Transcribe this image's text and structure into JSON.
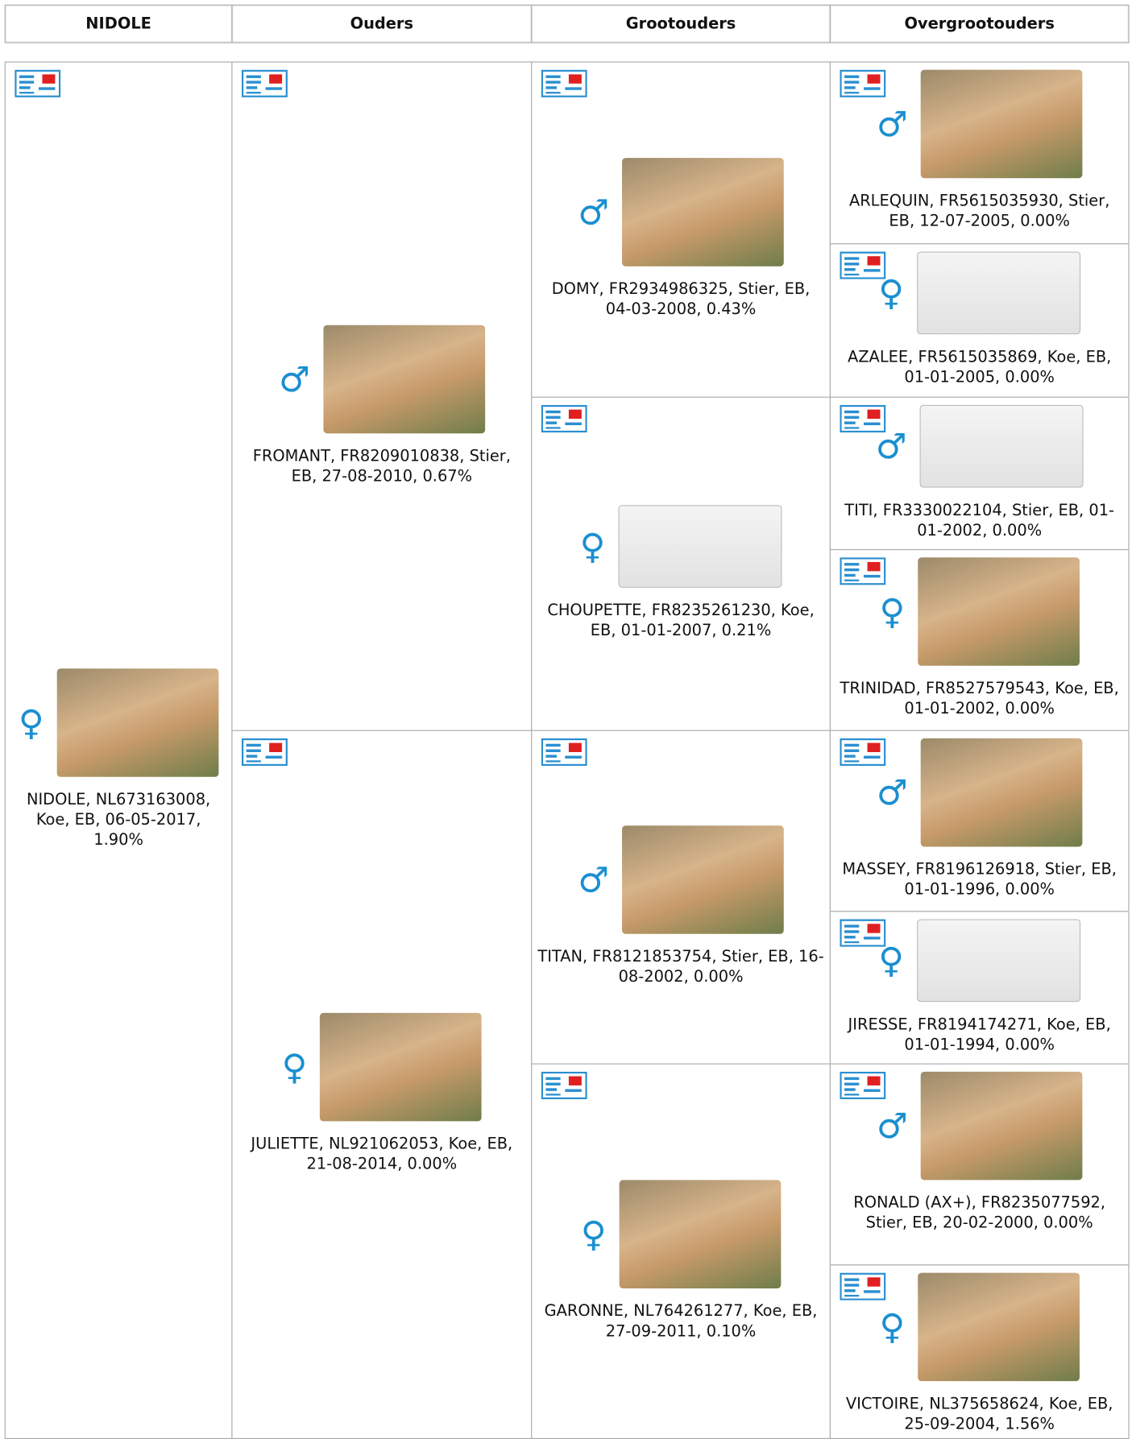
{
  "header": [
    "NIDOLE",
    "Ouders",
    "Grootouders",
    "Overgrootouders"
  ],
  "animals": [
    [
      {
        "sex": "♀",
        "label": "NIDOLE, NL673163008, Koe, EB, 06-05-2017, 1.90%"
      }
    ],
    [
      {
        "sex": "♂",
        "label": "FROMANT, FR8209010838, Stier, EB, 27-08-2010, 0.67%"
      },
      {
        "sex": "♀",
        "label": "JULIETTE, NL921062053, Koe, EB, 21-08-2014, 0.00%"
      }
    ],
    [
      {
        "sex": "♂",
        "label": "DOMY, FR2934986325, Stier, EB, 04-03-2008, 0.43%"
      },
      {
        "sex": "♀",
        "label": "CHOUPETTE, FR8235261230, Koe, EB, 01-01-2007, 0.21%"
      },
      {
        "sex": "♂",
        "label": "TITAN, FR8121853754, Stier, EB, 16-08-2002, 0.00%"
      },
      {
        "sex": "♀",
        "label": "GARONNE, NL764261277, Koe, EB, 27-09-2011, 0.10%"
      }
    ],
    [
      {
        "sex": "♂",
        "label": "ARLEQUIN, FR5615035930, Stier, EB, 12-07-2005, 0.00%"
      },
      {
        "sex": "♀",
        "label": "AZALEE, FR5615035869, Koe, EB, 01-01-2005, 0.00%"
      },
      {
        "sex": "♂",
        "label": "TITI, FR3330022104, Stier, EB, 01-01-2002, 0.00%"
      },
      {
        "sex": "♀",
        "label": "TRINIDAD, FR8527579543, Koe, EB, 01-01-2002, 0.00%"
      },
      {
        "sex": "♂",
        "label": "MASSEY, FR8196126918, Stier, EB, 01-01-1996, 0.00%"
      },
      {
        "sex": "♀",
        "label": "JIRESSE, FR8194174271, Koe, EB, 01-01-1994, 0.00%"
      },
      {
        "sex": "♂",
        "label": "RONALD (AX+), FR8235077592, Stier, EB, 20-02-2000, 0.00%"
      },
      {
        "sex": "♀",
        "label": "VICTOIRE, NL375658624, Koe, EB, 25-09-2004, 1.56%"
      }
    ]
  ]
}
